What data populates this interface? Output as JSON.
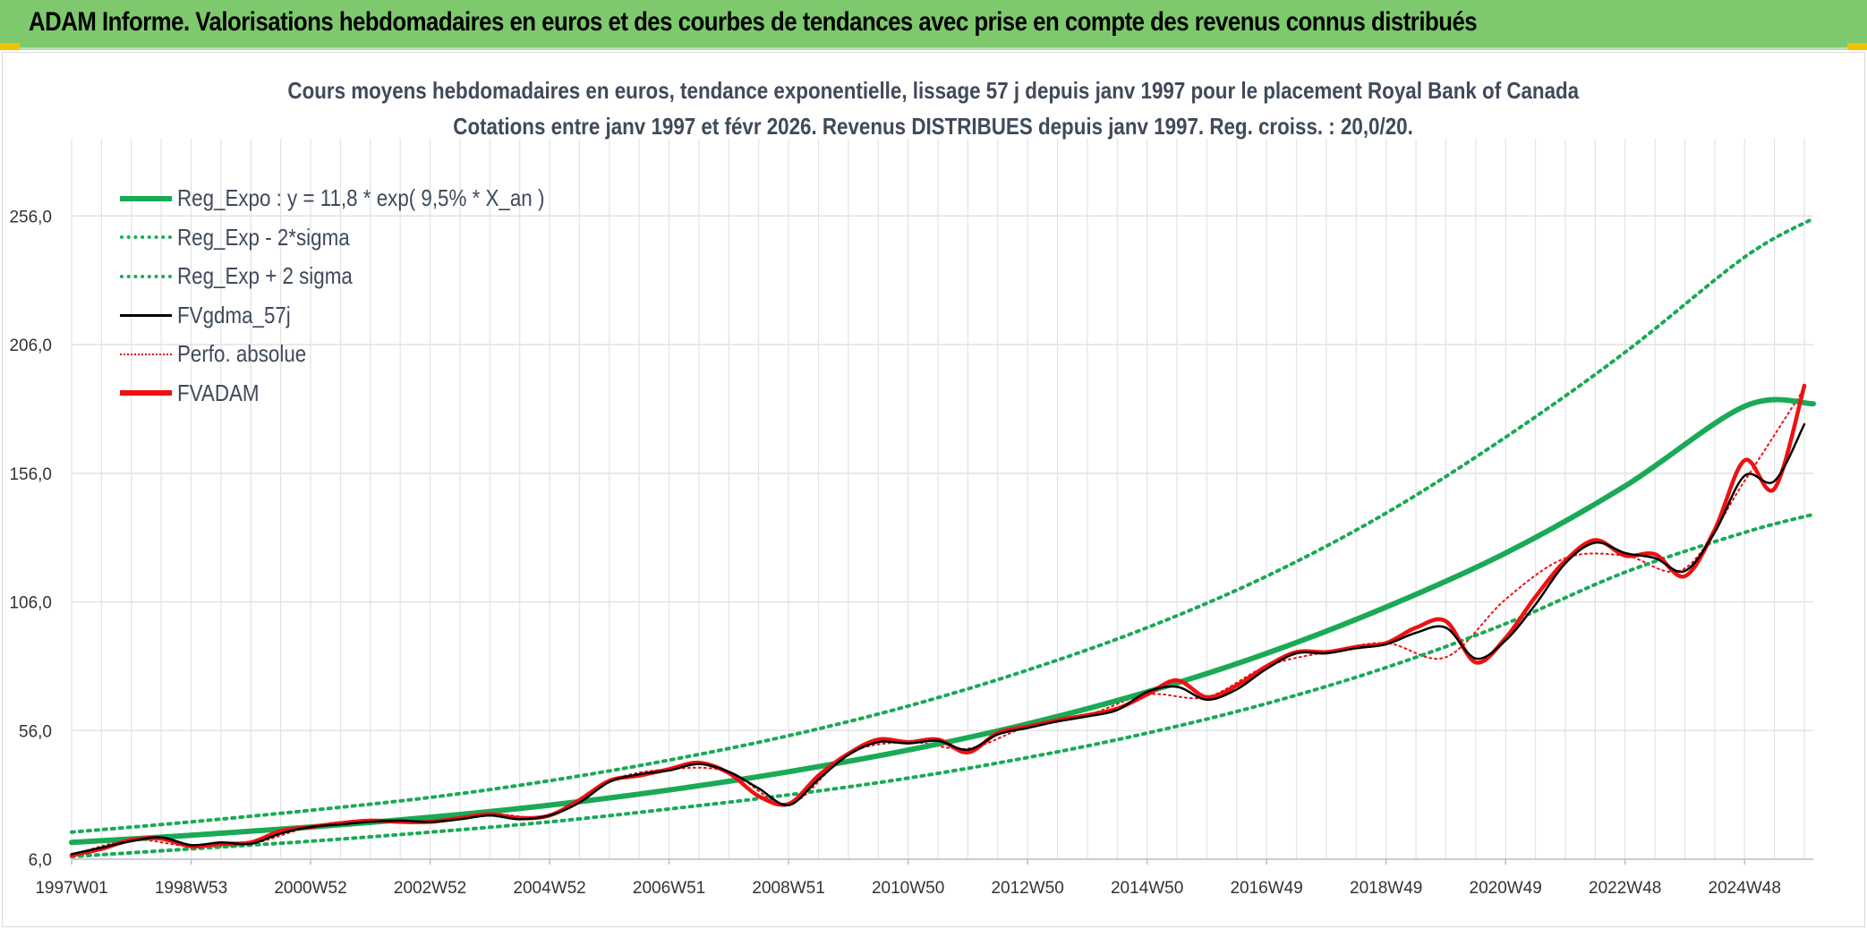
{
  "banner": {
    "title": "ADAM Informe. Valorisations hebdomadaires en euros et des courbes de tendances avec prise en compte des revenus connus distribués"
  },
  "colors": {
    "banner_bg": "#7ec96e",
    "reg_expo": "#1aaa55",
    "fvgdma": "#000000",
    "fvadam": "#ee1111",
    "grid": "#e3e3e3"
  },
  "chart_data": {
    "type": "line",
    "title": "Cours moyens hebdomadaires en euros, tendance exponentielle, lissage 57 j depuis janv 1997 pour le placement Royal Bank of Canada",
    "subtitle": "Cotations entre janv 1997 et févr 2026. Revenus DISTRIBUES depuis janv 1997. Reg. croiss. : 20,0/20.",
    "xlabel": "",
    "ylabel": "",
    "ylim": [
      6,
      286
    ],
    "xlim": [
      1997.0,
      2026.15
    ],
    "y_ticks": [
      "6,0",
      "56,0",
      "106,0",
      "156,0",
      "206,0",
      "256,0"
    ],
    "y_tick_values": [
      6,
      56,
      106,
      156,
      206,
      256
    ],
    "x_ticks": [
      "1997W01",
      "1998W53",
      "2000W52",
      "2002W52",
      "2004W52",
      "2006W51",
      "2008W51",
      "2010W50",
      "2012W50",
      "2014W50",
      "2016W49",
      "2018W49",
      "2020W49",
      "2022W48",
      "2024W48"
    ],
    "x_tick_years": [
      1997.0,
      1999.0,
      2001.0,
      2003.0,
      2005.0,
      2007.0,
      2009.0,
      2011.0,
      2013.0,
      2015.0,
      2017.0,
      2019.0,
      2021.0,
      2023.0,
      2025.0
    ],
    "grid": true,
    "legend_position": "top-left",
    "series": [
      {
        "name": "Reg_Expo : y = 11,8 * exp( 9,5% *  X_an )",
        "style": "solid-thick-green",
        "x": [
          1997.0,
          1999.0,
          2001.0,
          2003.0,
          2005.0,
          2007.0,
          2009.0,
          2011.0,
          2013.0,
          2015.0,
          2017.0,
          2019.0,
          2021.0,
          2023.0,
          2025.0,
          2026.15
        ],
        "y": [
          12.5,
          15.3,
          18.5,
          22.3,
          27.0,
          32.9,
          40.0,
          48.4,
          58.6,
          71.0,
          86.0,
          104.0,
          125.0,
          151.0,
          182.0,
          183.0
        ]
      },
      {
        "name": "Reg_Exp - 2*sigma",
        "style": "dotted-green",
        "x": [
          1997.0,
          1999.0,
          2001.0,
          2003.0,
          2005.0,
          2007.0,
          2009.0,
          2011.0,
          2013.0,
          2015.0,
          2017.0,
          2019.0,
          2021.0,
          2023.0,
          2025.0,
          2026.15
        ],
        "y": [
          7.0,
          10.0,
          13.0,
          16.5,
          20.5,
          25.5,
          31.0,
          37.5,
          45.5,
          55.0,
          66.5,
          80.5,
          97.5,
          117.5,
          133.0,
          140.0
        ]
      },
      {
        "name": "Reg_Exp + 2 sigma",
        "style": "dotted-green",
        "x": [
          1997.0,
          1999.0,
          2001.0,
          2003.0,
          2005.0,
          2007.0,
          2009.0,
          2011.0,
          2013.0,
          2015.0,
          2017.0,
          2019.0,
          2021.0,
          2023.0,
          2025.0,
          2026.15
        ],
        "y": [
          16.5,
          20.5,
          25.0,
          30.0,
          36.5,
          44.5,
          54.0,
          65.5,
          79.5,
          96.0,
          116.0,
          140.5,
          170.0,
          203.0,
          240.0,
          255.0
        ]
      },
      {
        "name": "FVgdma_57j",
        "style": "solid-black",
        "x": [
          1997.0,
          1997.5,
          1998.0,
          1998.5,
          1999.0,
          1999.5,
          2000.0,
          2000.5,
          2001.0,
          2001.5,
          2002.0,
          2002.5,
          2003.0,
          2003.5,
          2004.0,
          2004.5,
          2005.0,
          2005.5,
          2006.0,
          2006.5,
          2007.0,
          2007.5,
          2008.0,
          2008.5,
          2009.0,
          2009.5,
          2010.0,
          2010.5,
          2011.0,
          2011.5,
          2012.0,
          2012.5,
          2013.0,
          2013.5,
          2014.0,
          2014.5,
          2015.0,
          2015.5,
          2016.0,
          2016.5,
          2017.0,
          2017.5,
          2018.0,
          2018.5,
          2019.0,
          2019.5,
          2020.0,
          2020.5,
          2021.0,
          2021.5,
          2022.0,
          2022.5,
          2023.0,
          2023.5,
          2024.0,
          2024.5,
          2025.0,
          2025.5,
          2026.0
        ],
        "y": [
          8.0,
          10.5,
          13.0,
          14.5,
          11.5,
          12.5,
          12.0,
          16.0,
          18.5,
          19.5,
          20.5,
          21.0,
          20.5,
          21.5,
          23.0,
          21.5,
          23.0,
          28.0,
          36.0,
          39.0,
          40.5,
          43.0,
          40.0,
          33.5,
          27.0,
          37.0,
          46.5,
          51.5,
          51.0,
          52.0,
          48.5,
          54.5,
          57.0,
          59.5,
          61.5,
          64.0,
          71.0,
          73.0,
          68.0,
          72.0,
          80.0,
          86.0,
          86.0,
          88.0,
          89.5,
          94.0,
          96.0,
          84.0,
          91.0,
          105.0,
          121.0,
          129.0,
          125.0,
          123.0,
          118.0,
          133.0,
          155.0,
          153.0,
          175.0
        ]
      },
      {
        "name": "Perfo. absolue",
        "style": "dotted-red",
        "x": [
          1997.0,
          1998.0,
          1999.0,
          2000.0,
          2001.0,
          2002.0,
          2003.0,
          2004.0,
          2005.0,
          2006.0,
          2007.0,
          2008.0,
          2009.0,
          2010.0,
          2011.0,
          2012.0,
          2013.0,
          2014.0,
          2015.0,
          2016.0,
          2017.0,
          2018.0,
          2019.0,
          2020.0,
          2021.0,
          2022.0,
          2023.0,
          2024.0,
          2025.0,
          2026.0
        ],
        "y": [
          7.5,
          13.5,
          11.0,
          12.0,
          18.5,
          20.5,
          20.5,
          23.5,
          23.0,
          36.5,
          41.0,
          40.0,
          27.5,
          47.0,
          51.5,
          49.0,
          57.5,
          62.0,
          70.0,
          69.0,
          81.0,
          86.5,
          90.0,
          84.5,
          107.0,
          123.0,
          124.0,
          119.0,
          153.0,
          189.0
        ]
      },
      {
        "name": "FVADAM",
        "style": "solid-thick-red",
        "x": [
          1997.0,
          1997.5,
          1998.0,
          1998.5,
          1999.0,
          1999.5,
          2000.0,
          2000.5,
          2001.0,
          2001.5,
          2002.0,
          2002.5,
          2003.0,
          2003.5,
          2004.0,
          2004.5,
          2005.0,
          2005.5,
          2006.0,
          2006.5,
          2007.0,
          2007.5,
          2008.0,
          2008.5,
          2009.0,
          2009.5,
          2010.0,
          2010.5,
          2011.0,
          2011.5,
          2012.0,
          2012.5,
          2013.0,
          2013.5,
          2014.0,
          2014.5,
          2015.0,
          2015.5,
          2016.0,
          2016.5,
          2017.0,
          2017.5,
          2018.0,
          2018.5,
          2019.0,
          2019.5,
          2020.0,
          2020.5,
          2021.0,
          2021.5,
          2022.0,
          2022.5,
          2023.0,
          2023.5,
          2024.0,
          2024.5,
          2025.0,
          2025.5,
          2026.0
        ],
        "y": [
          7.5,
          10.0,
          13.5,
          14.0,
          11.0,
          12.0,
          12.5,
          17.0,
          18.5,
          20.0,
          21.0,
          20.5,
          20.5,
          22.0,
          23.5,
          22.0,
          23.0,
          29.0,
          36.5,
          38.5,
          41.0,
          43.5,
          39.5,
          30.5,
          27.5,
          38.5,
          47.0,
          52.5,
          51.5,
          52.5,
          47.5,
          55.0,
          57.5,
          60.0,
          62.0,
          64.5,
          70.0,
          75.5,
          69.0,
          73.5,
          81.0,
          86.5,
          86.5,
          88.5,
          90.0,
          96.0,
          98.5,
          82.5,
          92.0,
          108.0,
          122.0,
          130.0,
          124.0,
          124.5,
          116.0,
          134.0,
          161.0,
          150.0,
          190.0
        ]
      }
    ]
  }
}
